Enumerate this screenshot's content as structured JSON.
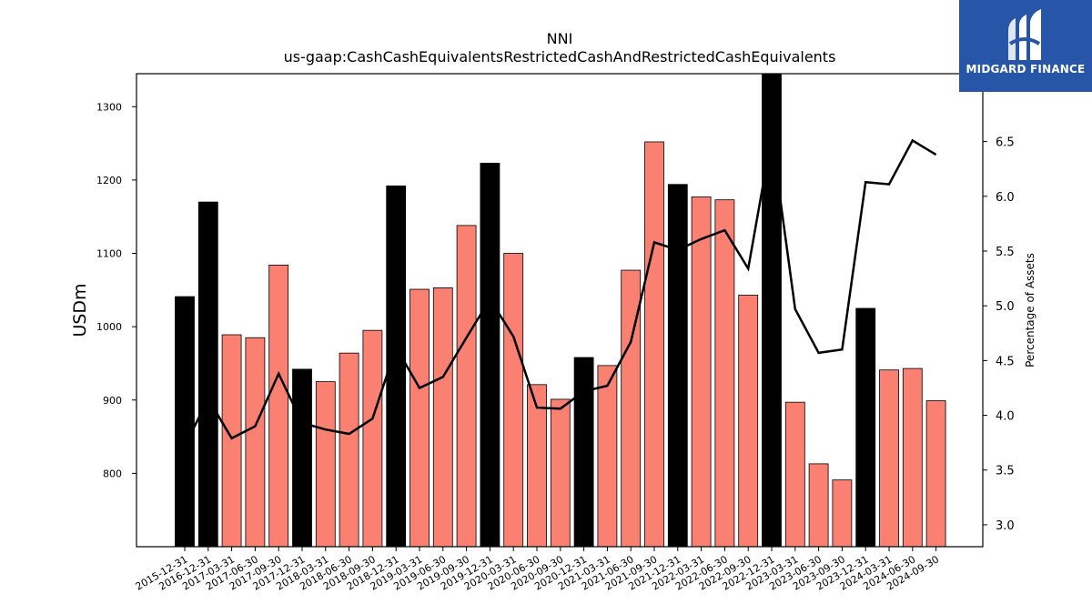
{
  "chart_data": {
    "type": "bar",
    "title": "NNI",
    "subtitle": "us-gaap:CashCashEquivalentsRestrictedCashAndRestrictedCashEquivalents",
    "ylabel": "USDm",
    "y2label": "Percentage of Assets",
    "ylim": [
      700,
      1345
    ],
    "y2lim": [
      2.8,
      7.12
    ],
    "yticks": [
      800,
      900,
      1000,
      1100,
      1200,
      1300
    ],
    "y2ticks": [
      3.0,
      3.5,
      4.0,
      4.5,
      5.0,
      5.5,
      6.0,
      6.5
    ],
    "categories": [
      "2015-12-31",
      "2016-12-31",
      "2017-03-31",
      "2017-06-30",
      "2017-09-30",
      "2017-12-31",
      "2018-03-31",
      "2018-06-30",
      "2018-09-30",
      "2018-12-31",
      "2019-03-31",
      "2019-06-30",
      "2019-09-30",
      "2019-12-31",
      "2020-03-31",
      "2020-06-30",
      "2020-09-30",
      "2020-12-31",
      "2021-03-31",
      "2021-06-30",
      "2021-09-30",
      "2021-12-31",
      "2022-03-31",
      "2022-06-30",
      "2022-09-30",
      "2022-12-31",
      "2023-03-31",
      "2023-06-30",
      "2023-09-30",
      "2023-12-31",
      "2024-03-31",
      "2024-06-30",
      "2024-09-30"
    ],
    "series": [
      {
        "values": [
          1041,
          1170,
          989,
          985,
          1084,
          942,
          925,
          964,
          995,
          1192,
          1051,
          1053,
          1138,
          1223,
          1100,
          921,
          901,
          958,
          947,
          1077,
          1252,
          1194,
          1177,
          1173,
          1043,
          1345,
          897,
          813,
          791,
          1025,
          941,
          943,
          899
        ],
        "annual": [
          true,
          true,
          false,
          false,
          false,
          true,
          false,
          false,
          false,
          true,
          false,
          false,
          false,
          true,
          false,
          false,
          false,
          true,
          false,
          false,
          false,
          true,
          false,
          false,
          false,
          true,
          false,
          false,
          false,
          true,
          false,
          false,
          false
        ]
      },
      {
        "type": "line",
        "axis": "right",
        "values": [
          3.72,
          4.15,
          3.79,
          3.9,
          4.38,
          3.93,
          3.87,
          3.83,
          3.97,
          4.62,
          4.25,
          4.35,
          4.71,
          5.06,
          4.72,
          4.07,
          4.06,
          4.22,
          4.27,
          4.67,
          5.58,
          5.51,
          5.61,
          5.69,
          5.34,
          6.55,
          4.97,
          4.57,
          4.6,
          6.13,
          6.11,
          6.51,
          6.38
        ]
      }
    ],
    "colors": {
      "annual_bar": "#000000",
      "quarter_bar": "#fa8072",
      "line": "#000000"
    }
  },
  "logo": {
    "text": "MIDGARD FINANCE",
    "bg": "#2756a8"
  }
}
